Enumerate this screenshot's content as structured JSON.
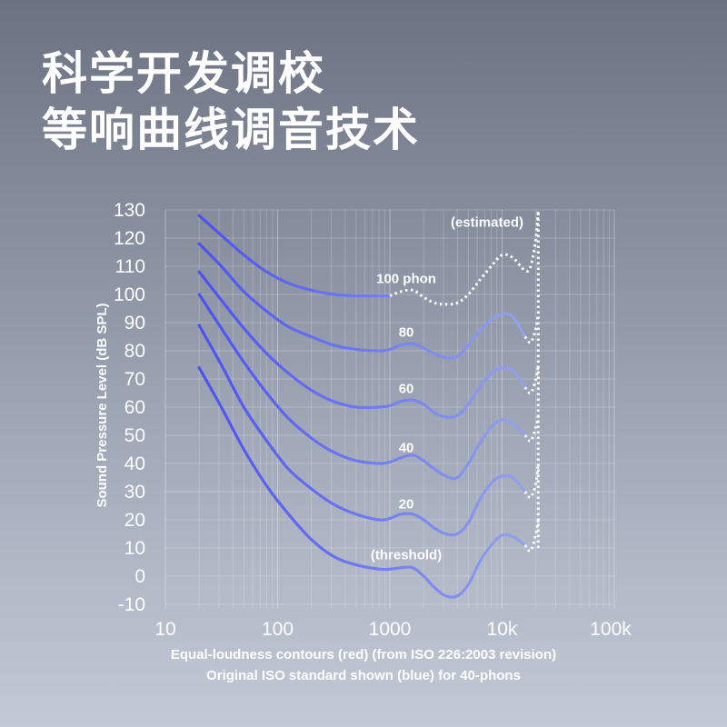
{
  "header": {
    "title_line1": "科学开发调校",
    "title_line2": "等响曲线调音技术"
  },
  "chart_data": {
    "type": "line",
    "xscale": "log",
    "xlim": [
      10,
      100000
    ],
    "ylim": [
      -10,
      130
    ],
    "grid": true,
    "x_ticks": [
      10,
      100,
      1000,
      10000,
      100000
    ],
    "x_tick_labels": [
      "10",
      "100",
      "1000",
      "10k",
      "100k"
    ],
    "y_ticks": [
      130,
      120,
      110,
      100,
      90,
      80,
      70,
      60,
      50,
      40,
      30,
      20,
      10,
      0,
      -10
    ],
    "y_tick_labels": [
      "130",
      "120",
      "110",
      "100",
      "90",
      "80",
      "70",
      "60",
      "50",
      "40",
      "30",
      "20",
      "10",
      "0",
      "-10"
    ],
    "ylabel": "Sound Pressure Level (dB SPL)",
    "xlabel_line1": "Equal-loudness contours (red) (from ISO 226:2003 revision)",
    "xlabel_line2": "Original ISO standard shown (blue) for 40-phons",
    "colors": {
      "curve_start": "#4a4ff2",
      "curve_end": "#93a3ec",
      "estimated": "#ffffff"
    },
    "series": [
      {
        "name": "100 phon",
        "label_at": [
          1400,
          104
        ],
        "x": [
          20,
          31.5,
          50,
          80,
          125,
          200,
          315,
          500,
          800,
          1000
        ],
        "y": [
          128,
          121,
          114,
          108,
          104,
          101.5,
          100,
          99.5,
          99.5,
          99.5
        ],
        "estimated_x": [
          1000,
          1250,
          1600,
          2000,
          2500,
          3150,
          4000,
          5000,
          6300,
          8000,
          10000,
          12500,
          16000,
          18000,
          20000,
          21000
        ],
        "estimated_y": [
          99.5,
          101,
          101.5,
          99,
          97,
          96.5,
          97,
          100,
          105,
          110,
          114,
          113,
          108.5,
          110,
          120,
          130
        ]
      },
      {
        "name": "80",
        "label_at": [
          1400,
          85
        ],
        "x": [
          20,
          31.5,
          50,
          80,
          125,
          200,
          315,
          500,
          800,
          1000,
          1250,
          1600,
          2000,
          2500,
          3150,
          4000,
          5000,
          6300,
          8000,
          10000,
          12500,
          16000
        ],
        "y": [
          118,
          110,
          101,
          94,
          88.5,
          85,
          82,
          80.5,
          80,
          80.5,
          82,
          82.5,
          81,
          79,
          77.5,
          78,
          82,
          87,
          91,
          93,
          92,
          85
        ],
        "estimated_x": [
          16000,
          18000,
          20000,
          21000
        ],
        "estimated_y": [
          85,
          83,
          88,
          93
        ]
      },
      {
        "name": "60",
        "label_at": [
          1400,
          65
        ],
        "x": [
          20,
          31.5,
          50,
          80,
          125,
          200,
          315,
          500,
          800,
          1000,
          1250,
          1600,
          2000,
          2500,
          3150,
          4000,
          5000,
          6300,
          8000,
          10000,
          12500,
          16000
        ],
        "y": [
          108,
          98,
          88,
          79,
          72,
          66,
          62,
          60,
          60,
          60.5,
          62,
          62.5,
          61,
          58,
          56.5,
          57,
          61,
          67,
          72,
          74,
          73,
          67
        ],
        "estimated_x": [
          16000,
          18000,
          20000,
          21000
        ],
        "estimated_y": [
          67,
          65,
          70,
          75
        ]
      },
      {
        "name": "40",
        "label_at": [
          1400,
          44
        ],
        "x": [
          20,
          31.5,
          50,
          80,
          125,
          200,
          315,
          500,
          800,
          1000,
          1250,
          1600,
          2000,
          2500,
          3150,
          4000,
          5000,
          6300,
          8000,
          10000,
          12500,
          16000
        ],
        "y": [
          100,
          88,
          76,
          65,
          56,
          49,
          44,
          41,
          40,
          40.5,
          42,
          43,
          41,
          38,
          35.5,
          35,
          40,
          47,
          53,
          55.5,
          54,
          50
        ],
        "estimated_x": [
          16000,
          18000,
          20000,
          21000
        ],
        "estimated_y": [
          50,
          48,
          53,
          57
        ]
      },
      {
        "name": "20",
        "label_at": [
          1400,
          24
        ],
        "x": [
          20,
          31.5,
          50,
          80,
          125,
          200,
          315,
          500,
          800,
          1000,
          1250,
          1600,
          2000,
          2500,
          3150,
          4000,
          5000,
          6300,
          8000,
          10000,
          12500,
          16000
        ],
        "y": [
          89,
          75,
          60,
          48,
          38,
          31,
          25.5,
          22,
          20,
          20.5,
          22,
          22,
          20,
          17,
          15,
          15,
          19,
          27,
          33,
          35.5,
          35,
          30
        ],
        "estimated_x": [
          16000,
          18000,
          20000,
          21000
        ],
        "estimated_y": [
          30,
          28,
          33,
          40
        ]
      },
      {
        "name": "(threshold)",
        "label_at": [
          1400,
          6
        ],
        "x": [
          20,
          31.5,
          50,
          80,
          125,
          200,
          315,
          500,
          800,
          1000,
          1250,
          1600,
          2000,
          2500,
          3150,
          4000,
          5000,
          6300,
          8000,
          10000,
          12500,
          16000
        ],
        "y": [
          74,
          60,
          45,
          32,
          22,
          13,
          7,
          4,
          2.5,
          2.5,
          3,
          3,
          0,
          -4,
          -7,
          -7,
          -3,
          5,
          11,
          14.5,
          14,
          11
        ],
        "estimated_x": [
          16000,
          18000,
          20000,
          21000
        ],
        "estimated_y": [
          11,
          9,
          15,
          20
        ]
      }
    ],
    "estimated_vertical": {
      "x": 21000,
      "y": [
        10,
        130
      ]
    },
    "annotations": [
      {
        "text": "(estimated)",
        "at": [
          15500,
          124
        ]
      }
    ]
  }
}
